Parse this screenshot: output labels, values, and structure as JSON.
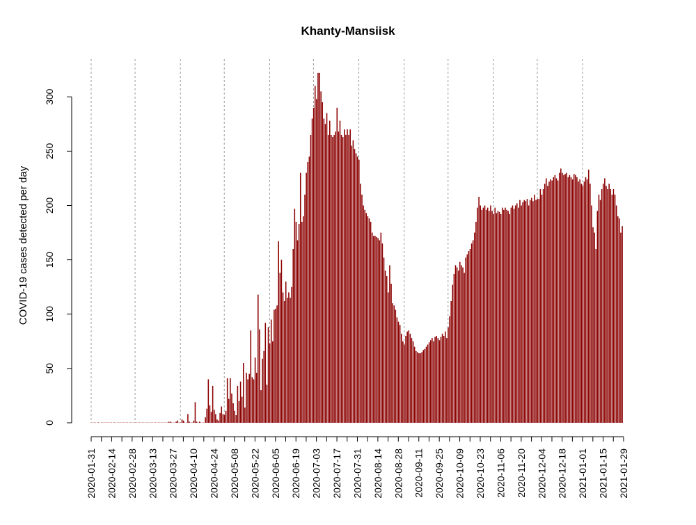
{
  "chart_data": {
    "type": "bar",
    "title": "Khanty-Mansiisk",
    "xlabel": "",
    "ylabel": "COVID-19 cases detected per day",
    "start_date": "2020-01-31",
    "ylim": [
      0,
      320
    ],
    "yticks": [
      0,
      50,
      100,
      150,
      200,
      250,
      300
    ],
    "xtick_labels": [
      "2020-01-31",
      "2020-02-14",
      "2020-02-28",
      "2020-03-13",
      "2020-03-27",
      "2020-04-10",
      "2020-04-24",
      "2020-05-08",
      "2020-05-22",
      "2020-06-05",
      "2020-06-19",
      "2020-07-03",
      "2020-07-17",
      "2020-07-31",
      "2020-08-14",
      "2020-08-28",
      "2020-09-11",
      "2020-09-25",
      "2020-10-09",
      "2020-10-23",
      "2020-11-06",
      "2020-11-20",
      "2020-12-04",
      "2020-12-18",
      "2021-01-01",
      "2021-01-15",
      "2021-01-29"
    ],
    "gridlines": [
      "2020-01-31",
      "2020-03-01",
      "2020-04-01",
      "2020-05-01",
      "2020-06-01",
      "2020-07-01",
      "2020-08-01",
      "2020-09-01",
      "2020-10-01",
      "2020-11-01",
      "2020-12-01",
      "2021-01-01"
    ],
    "bar_color": "#8b0000",
    "values": [
      0,
      0,
      0,
      0,
      0,
      0,
      0,
      0,
      0,
      0,
      0,
      0,
      0,
      0,
      0,
      0,
      0,
      0,
      0,
      0,
      0,
      0,
      0,
      0,
      0,
      0,
      0,
      0,
      0,
      0,
      0,
      0,
      0,
      0,
      0,
      0,
      0,
      0,
      0,
      0,
      0,
      0,
      0,
      0,
      0,
      0,
      0,
      0,
      0,
      0,
      0,
      0,
      0,
      1,
      1,
      0,
      0,
      0,
      1,
      2,
      0,
      0,
      3,
      2,
      0,
      0,
      8,
      1,
      0,
      0,
      2,
      19,
      1,
      0,
      1,
      0,
      0,
      0,
      5,
      13,
      40,
      16,
      10,
      34,
      12,
      8,
      3,
      2,
      9,
      15,
      8,
      7,
      11,
      41,
      22,
      41,
      27,
      18,
      11,
      7,
      34,
      20,
      38,
      24,
      55,
      14,
      46,
      40,
      45,
      85,
      42,
      40,
      60,
      46,
      118,
      86,
      30,
      59,
      66,
      92,
      35,
      88,
      73,
      95,
      75,
      104,
      105,
      108,
      167,
      138,
      150,
      120,
      112,
      130,
      115,
      120,
      115,
      125,
      160,
      197,
      185,
      168,
      183,
      230,
      185,
      190,
      210,
      230,
      240,
      245,
      265,
      280,
      290,
      310,
      298,
      322,
      322,
      305,
      295,
      280,
      275,
      285,
      265,
      278,
      265,
      263,
      265,
      268,
      290,
      268,
      278,
      265,
      263,
      270,
      265,
      270,
      265,
      270,
      255,
      260,
      252,
      248,
      245,
      242,
      220,
      210,
      200,
      196,
      193,
      190,
      188,
      185,
      175,
      172,
      172,
      171,
      170,
      168,
      175,
      165,
      152,
      140,
      135,
      120,
      145,
      128,
      110,
      108,
      104,
      97,
      93,
      90,
      82,
      75,
      72,
      80,
      84,
      85,
      82,
      78,
      75,
      70,
      66,
      65,
      64,
      64,
      65,
      67,
      68,
      70,
      72,
      74,
      76,
      78,
      75,
      79,
      80,
      78,
      76,
      79,
      82,
      80,
      84,
      78,
      88,
      98,
      112,
      127,
      137,
      145,
      143,
      140,
      148,
      145,
      143,
      138,
      152,
      155,
      158,
      160,
      165,
      168,
      175,
      185,
      198,
      208,
      200,
      196,
      198,
      200,
      196,
      198,
      195,
      200,
      195,
      192,
      198,
      193,
      195,
      194,
      192,
      198,
      196,
      198,
      196,
      195,
      192,
      198,
      200,
      197,
      200,
      202,
      198,
      205,
      200,
      203,
      205,
      204,
      206,
      200,
      205,
      207,
      204,
      210,
      205,
      206,
      206,
      215,
      210,
      215,
      220,
      225,
      218,
      222,
      224,
      223,
      226,
      228,
      225,
      223,
      230,
      234,
      230,
      228,
      229,
      230,
      226,
      228,
      226,
      224,
      229,
      228,
      226,
      222,
      224,
      220,
      218,
      222,
      226,
      224,
      233,
      220,
      200,
      180,
      175,
      160,
      195,
      210,
      205,
      215,
      220,
      225,
      218,
      215,
      220,
      215,
      210,
      215,
      210,
      200,
      190,
      188,
      175,
      181
    ]
  }
}
